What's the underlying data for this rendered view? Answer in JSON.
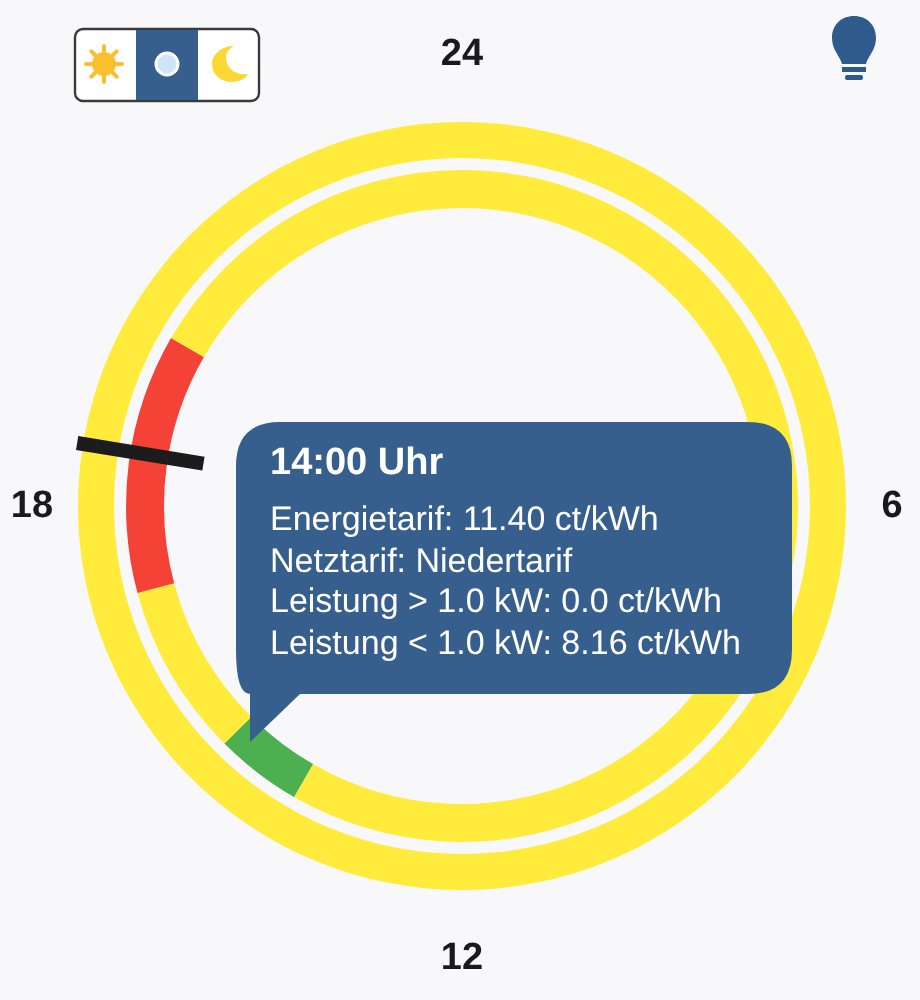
{
  "chart_data": [
    {
      "type": "donut",
      "categories": [
        null,
        null
      ],
      "values": [
        50,
        50
      ],
      "colors": [
        "#ffeb3b",
        "#ffeb3b"
      ],
      "annotations": [
        "24",
        "6",
        "12",
        "18"
      ]
    },
    {
      "type": "donut",
      "categories": [
        null,
        null,
        null,
        null,
        null
      ],
      "values": [
        58.33,
        4.17,
        8.33,
        12.5,
        16.67
      ],
      "colors": [
        "#ffeb3b",
        "#4caf50",
        "#ffeb3b",
        "#f44336",
        "#ffeb3b"
      ],
      "annotations": [
        "14:00 Uhr",
        "Energietarif: 11.40 ct/kWh",
        "Netztarif: Niedertarif",
        "Leistung > 1.0 kW: 0.0 ct/kWh",
        "Leistung < 1.0 kW: 8.16 ct/kWh"
      ]
    }
  ]
}
